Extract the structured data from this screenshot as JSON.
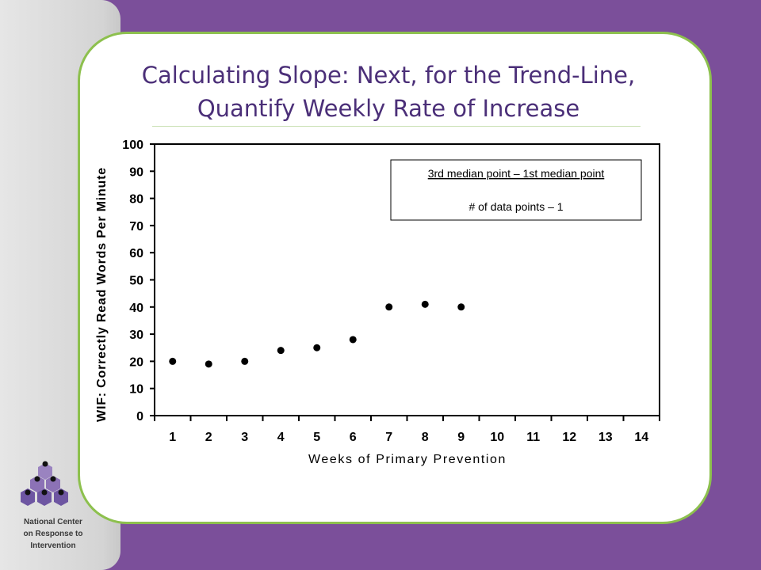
{
  "slide": {
    "title_line1": "Calculating Slope: Next, for the Trend-Line,",
    "title_line2": "Quantify Weekly Rate of Increase"
  },
  "logo": {
    "org_line1": "National Center",
    "org_line2": "on Response to",
    "org_line3": "Intervention"
  },
  "formula": {
    "numerator": "3rd median point – 1st median point",
    "denominator": "# of data points – 1"
  },
  "colors": {
    "background": "#7b4f9a",
    "card_border": "#8dc04e",
    "title": "#4b2f78"
  },
  "chart_data": {
    "type": "scatter",
    "xlabel": "Weeks of Primary Prevention",
    "ylabel": "WIF: Correctly Read Words Per Minute",
    "x_ticks": [
      "1",
      "2",
      "3",
      "4",
      "5",
      "6",
      "7",
      "8",
      "9",
      "10",
      "11",
      "12",
      "13",
      "14"
    ],
    "y_ticks": [
      "0",
      "10",
      "20",
      "30",
      "40",
      "50",
      "60",
      "70",
      "80",
      "90",
      "100"
    ],
    "ylim": [
      0,
      100
    ],
    "xlim": [
      0.5,
      14.5
    ],
    "grid": false,
    "x": [
      1,
      2,
      3,
      4,
      5,
      6,
      7,
      8,
      9
    ],
    "y": [
      20,
      19,
      20,
      24,
      25,
      28,
      40,
      41,
      40
    ]
  }
}
